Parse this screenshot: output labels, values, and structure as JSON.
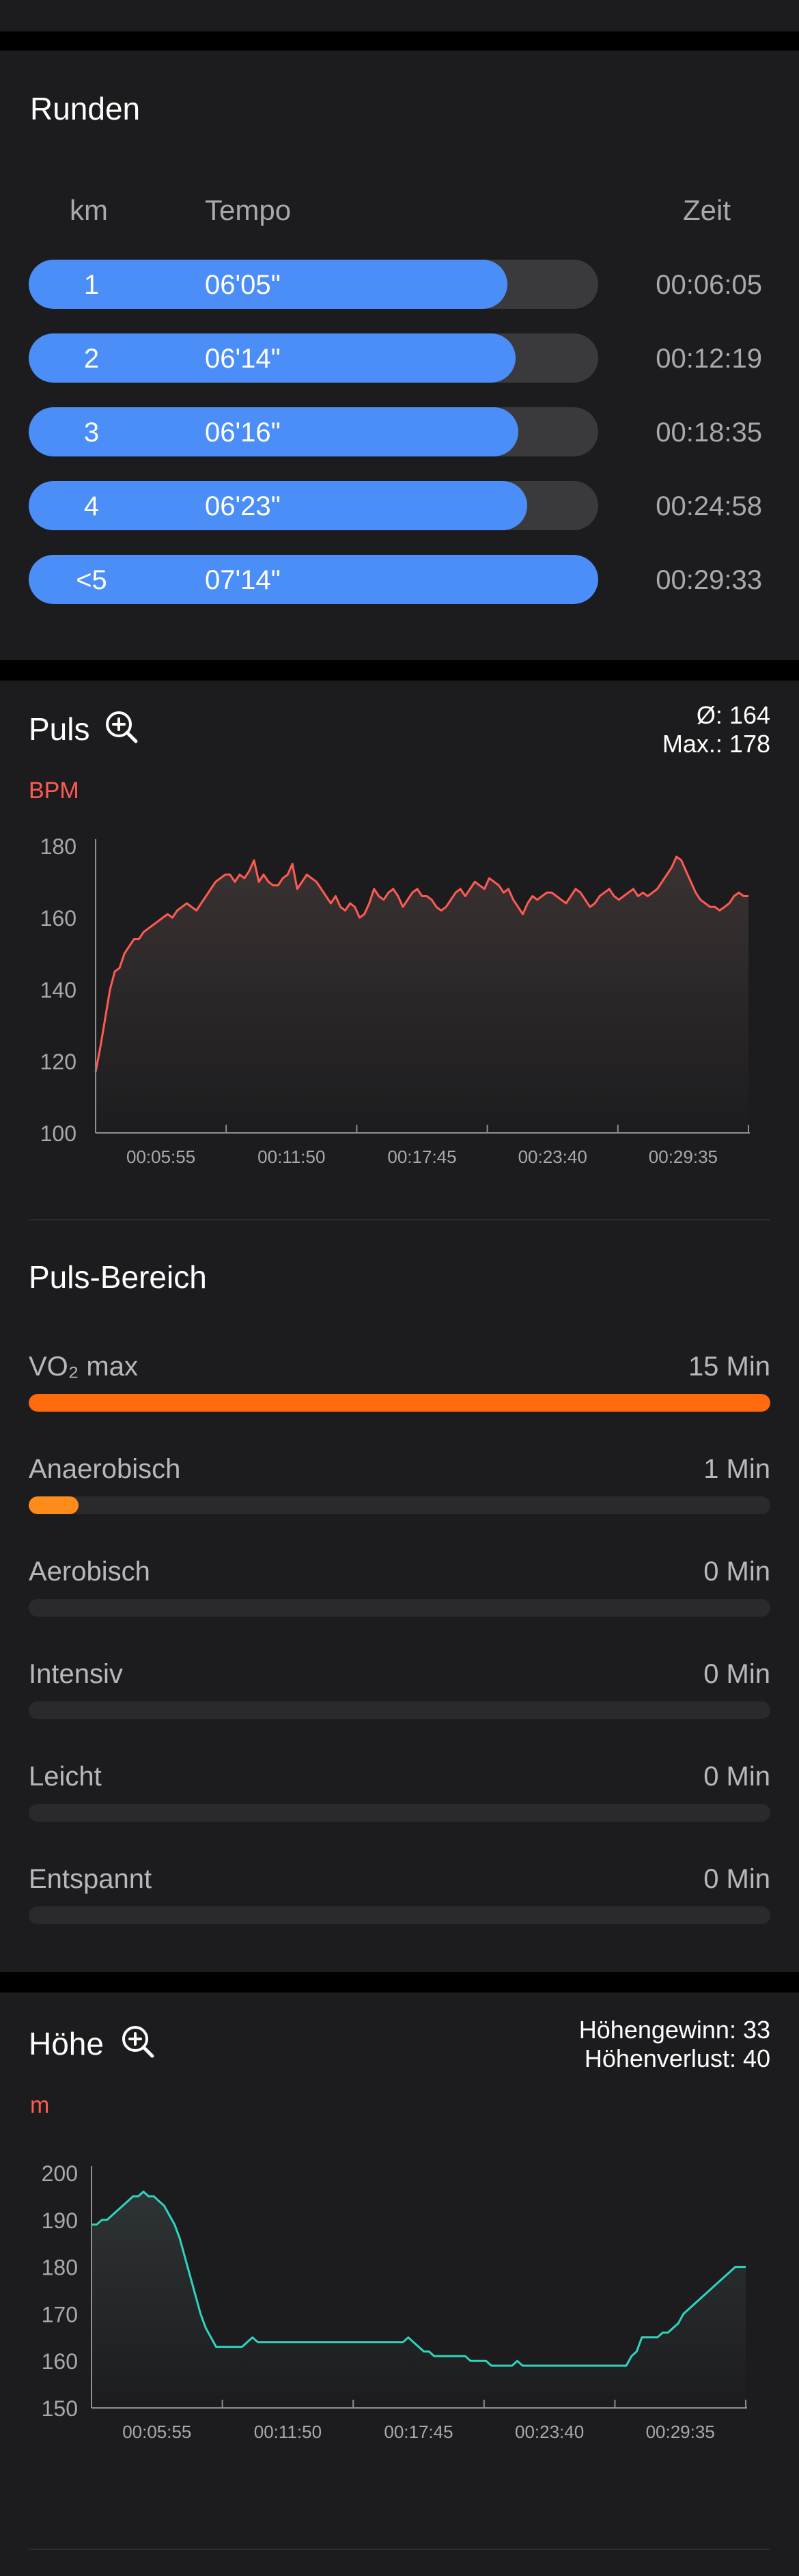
{
  "laps": {
    "title": "Runden",
    "headers": {
      "km": "km",
      "tempo": "Tempo",
      "time": "Zeit"
    },
    "rows": [
      {
        "km": "1",
        "tempo": "06'05\"",
        "time": "00:06:05",
        "fill": 0.84
      },
      {
        "km": "2",
        "tempo": "06'14\"",
        "time": "00:12:19",
        "fill": 0.855
      },
      {
        "km": "3",
        "tempo": "06'16\"",
        "time": "00:18:35",
        "fill": 0.86
      },
      {
        "km": "4",
        "tempo": "06'23\"",
        "time": "00:24:58",
        "fill": 0.875
      },
      {
        "km": "<5",
        "tempo": "07'14\"",
        "time": "00:29:33",
        "fill": 1.0
      }
    ],
    "colors": {
      "fill": "#4b8ef8",
      "track": "#3a3a3c"
    }
  },
  "pulse": {
    "title": "Puls",
    "avg": "Ø: 164",
    "max": "Max.: 178",
    "unit": "BPM"
  },
  "zones": {
    "title": "Puls-Bereich",
    "items": [
      {
        "label": "VO₂ max",
        "value": "15 Min",
        "fill": 1.0,
        "color": "#ff6a0d"
      },
      {
        "label": "Anaerobisch",
        "value": "1 Min",
        "fill": 0.067,
        "color": "#ff8c1a"
      },
      {
        "label": "Aerobisch",
        "value": "0 Min",
        "fill": 0,
        "color": "#ffb020"
      },
      {
        "label": "Intensiv",
        "value": "0 Min",
        "fill": 0,
        "color": "#4cd964"
      },
      {
        "label": "Leicht",
        "value": "0 Min",
        "fill": 0,
        "color": "#4b8ef8"
      },
      {
        "label": "Entspannt",
        "value": "0 Min",
        "fill": 0,
        "color": "#8e8e93"
      }
    ]
  },
  "elevation": {
    "title": "Höhe",
    "gain": "Höhengewinn: 33",
    "loss": "Höhenverlust: 40",
    "unit": "m"
  },
  "chart_data": [
    {
      "type": "line",
      "ylabel": "BPM",
      "ylim": [
        100,
        180
      ],
      "yticks": [
        "180",
        "160",
        "140",
        "120",
        "100"
      ],
      "xticks": [
        "00:05:55",
        "00:11:50",
        "00:17:45",
        "00:23:40",
        "00:29:35"
      ],
      "x_seconds_range": [
        0,
        1780
      ],
      "color": "#ff5a52",
      "series": [
        {
          "values": [
            117,
            124,
            132,
            140,
            145,
            146,
            150,
            152,
            154,
            154,
            156,
            157,
            158,
            159,
            160,
            161,
            160,
            162,
            163,
            164,
            163,
            162,
            164,
            166,
            168,
            170,
            171,
            172,
            172,
            170,
            172,
            171,
            173,
            176,
            170,
            172,
            170,
            169,
            169,
            171,
            172,
            175,
            168,
            170,
            172,
            171,
            170,
            168,
            166,
            164,
            166,
            163,
            162,
            164,
            163,
            160,
            161,
            164,
            168,
            166,
            165,
            167,
            168,
            166,
            163,
            165,
            167,
            168,
            166,
            166,
            165,
            163,
            162,
            163,
            165,
            167,
            168,
            166,
            168,
            170,
            169,
            168,
            171,
            170,
            169,
            167,
            168,
            165,
            163,
            161,
            164,
            166,
            165,
            166,
            167,
            167,
            166,
            165,
            164,
            166,
            168,
            167,
            165,
            163,
            164,
            166,
            167,
            168,
            166,
            165,
            166,
            167,
            168,
            166,
            167,
            166,
            167,
            168,
            170,
            172,
            174,
            177,
            176,
            173,
            170,
            167,
            165,
            164,
            163,
            163,
            162,
            163,
            164,
            166,
            167,
            166,
            166
          ]
        }
      ]
    },
    {
      "type": "line",
      "ylabel": "m",
      "ylim": [
        150,
        200
      ],
      "yticks": [
        "200",
        "190",
        "180",
        "170",
        "160",
        "150"
      ],
      "xticks": [
        "00:05:55",
        "00:11:50",
        "00:17:45",
        "00:23:40",
        "00:29:35"
      ],
      "x_seconds_range": [
        0,
        1780
      ],
      "color": "#2fd4c0",
      "series": [
        {
          "values": [
            189,
            189,
            190,
            190,
            191,
            192,
            193,
            194,
            195,
            195,
            196,
            195,
            195,
            194,
            193,
            191,
            189,
            186,
            182,
            178,
            174,
            170,
            167,
            165,
            163,
            163,
            163,
            163,
            163,
            163,
            164,
            165,
            164,
            164,
            164,
            164,
            164,
            164,
            164,
            164,
            164,
            164,
            164,
            164,
            164,
            164,
            164,
            164,
            164,
            164,
            164,
            164,
            164,
            164,
            164,
            164,
            164,
            164,
            164,
            164,
            164,
            165,
            164,
            163,
            162,
            162,
            161,
            161,
            161,
            161,
            161,
            161,
            161,
            160,
            160,
            160,
            160,
            159,
            159,
            159,
            159,
            159,
            160,
            159,
            159,
            159,
            159,
            159,
            159,
            159,
            159,
            159,
            159,
            159,
            159,
            159,
            159,
            159,
            159,
            159,
            159,
            159,
            159,
            159,
            161,
            162,
            165,
            165,
            165,
            165,
            166,
            166,
            167,
            168,
            170,
            171,
            172,
            173,
            174,
            175,
            176,
            177,
            178,
            179,
            180,
            180,
            180
          ]
        }
      ]
    }
  ]
}
